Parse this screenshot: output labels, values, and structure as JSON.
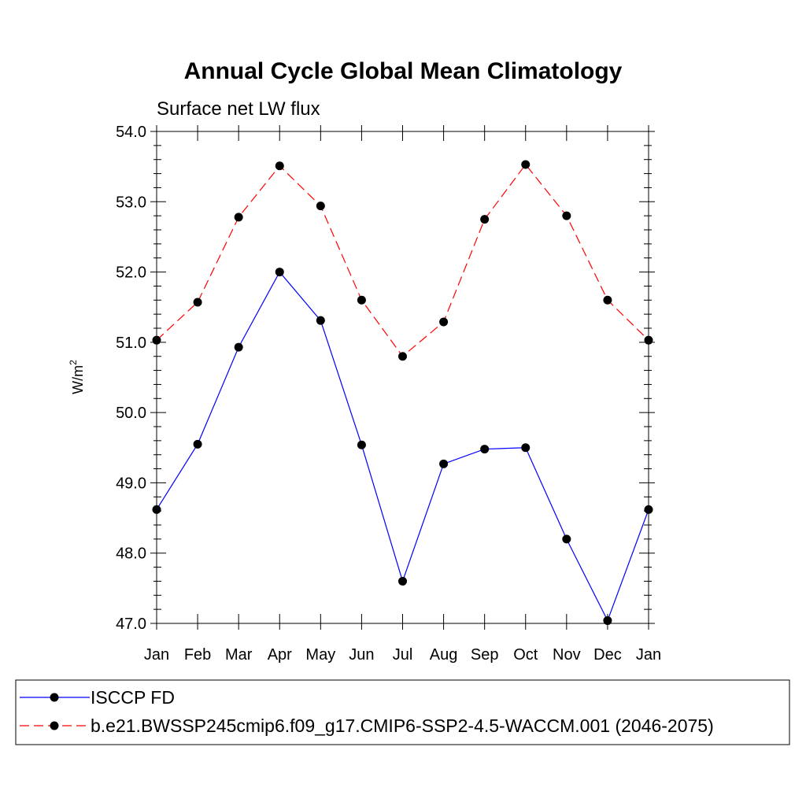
{
  "chart_data": {
    "type": "line",
    "title": "Annual Cycle Global Mean Climatology",
    "subtitle": "Surface net LW flux",
    "ylabel": "W/m",
    "ylabel_superscript": "2",
    "ylim": [
      47.0,
      54.0
    ],
    "yticks": [
      "47.0",
      "48.0",
      "49.0",
      "50.0",
      "51.0",
      "52.0",
      "53.0",
      "54.0"
    ],
    "categories": [
      "Jan",
      "Feb",
      "Mar",
      "Apr",
      "May",
      "Jun",
      "Jul",
      "Aug",
      "Sep",
      "Oct",
      "Nov",
      "Dec",
      "Jan"
    ],
    "grid": false,
    "legend_position": "bottom",
    "series": [
      {
        "name": "ISCCP FD",
        "color": "#0000ff",
        "dash": "solid",
        "values": [
          48.62,
          49.55,
          50.93,
          52.0,
          51.31,
          49.54,
          47.6,
          49.27,
          49.48,
          49.5,
          48.2,
          47.04,
          48.62
        ]
      },
      {
        "name": "b.e21.BWSSP245cmip6.f09_g17.CMIP6-SSP2-4.5-WACCM.001 (2046-2075)",
        "color": "#ff0000",
        "dash": "dashed",
        "values": [
          51.03,
          51.57,
          52.78,
          53.51,
          52.94,
          51.6,
          50.8,
          51.29,
          52.75,
          53.53,
          52.8,
          51.6,
          51.03
        ]
      }
    ]
  }
}
